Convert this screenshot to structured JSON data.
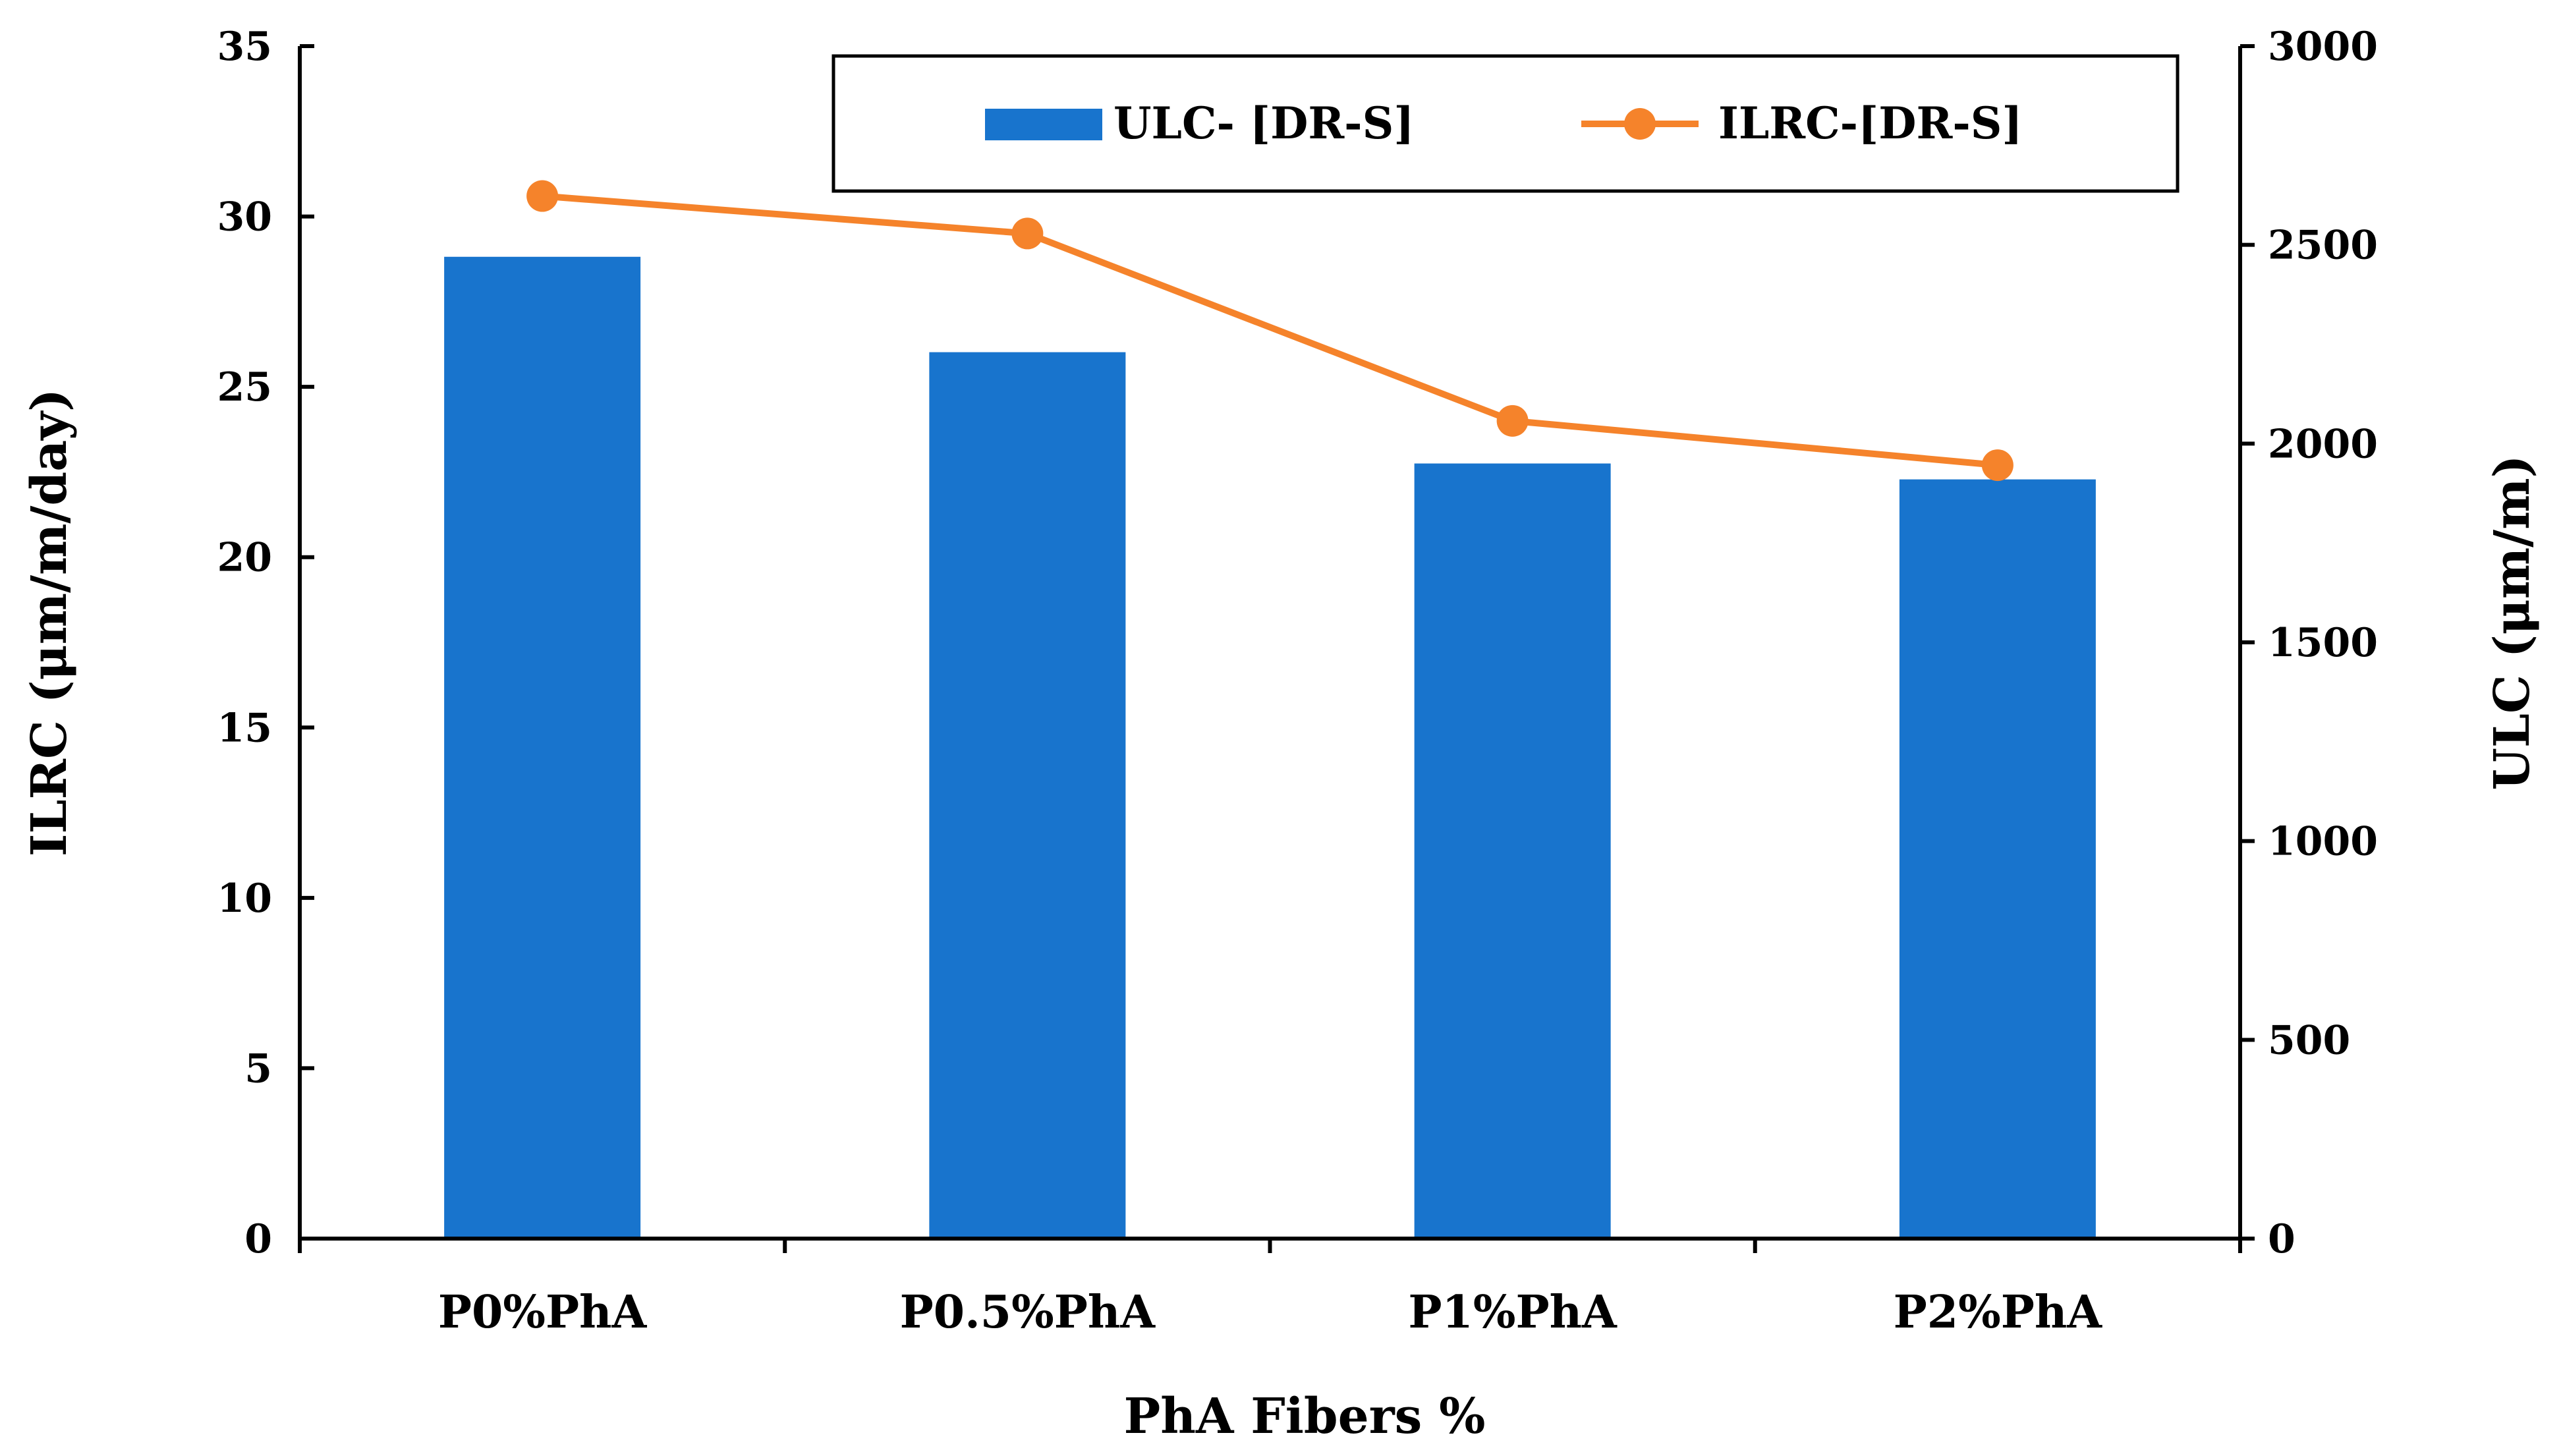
{
  "chart_data": {
    "type": "bar",
    "categories": [
      "P0%PhA",
      "P0.5%PhA",
      "P1%PhA",
      "P2%PhA"
    ],
    "xlabel": "PhA Fibers %",
    "ylabel_left": "ILRC (μm/m/day)",
    "ylabel_right": "ULC (μm/m)",
    "ylim_left": [
      0,
      35
    ],
    "ylim_right": [
      0,
      3000
    ],
    "yticks_left": [
      "0",
      "5",
      "10",
      "15",
      "20",
      "25",
      "30",
      "35"
    ],
    "yticks_right": [
      "0",
      "500",
      "1000",
      "1500",
      "2000",
      "2500",
      "3000"
    ],
    "grid": false,
    "legend_position": "top",
    "series": [
      {
        "name": "ULC- [DR-S]",
        "type": "bar",
        "axis": "right",
        "color": "#1874CD",
        "values": [
          2470,
          2230,
          1950,
          1910
        ]
      },
      {
        "name": "ILRC-[DR-S]",
        "type": "line",
        "axis": "left",
        "color": "#F5832B",
        "values": [
          30.6,
          29.5,
          24.0,
          22.7
        ]
      }
    ]
  }
}
